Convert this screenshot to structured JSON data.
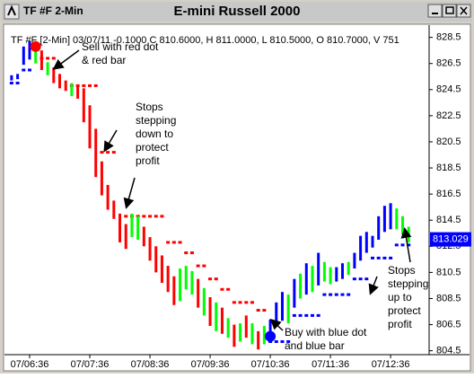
{
  "window": {
    "app_title": "TF #F 2-Min",
    "title": "E-mini Russell 2000"
  },
  "chart_data": {
    "type": "ohlc",
    "info": "TF #F [2-Min] 03/07/11 -0.1000 C 810.6000, H 811.0000, L 810.5000, O 810.7000, V 751",
    "x": [
      1,
      2,
      3,
      4,
      5,
      6,
      7,
      8,
      9,
      10,
      11,
      12,
      13,
      14,
      15,
      16,
      17,
      18,
      19,
      20,
      21,
      22,
      23,
      24,
      25,
      26,
      27,
      28,
      29,
      30,
      31,
      32,
      33,
      34,
      35,
      36,
      37,
      38,
      39,
      40,
      41,
      42,
      43,
      44,
      45,
      46,
      47,
      48,
      49,
      50,
      51,
      52,
      53,
      54,
      55,
      56,
      57,
      58,
      59,
      60,
      61,
      62,
      63,
      64,
      65,
      66,
      67
    ],
    "low": [
      825.2,
      825.3,
      826.4,
      826.8,
      826.5,
      826.0,
      825.6,
      825.0,
      824.6,
      824.4,
      824.0,
      823.8,
      822.0,
      820.0,
      817.8,
      816.4,
      815.3,
      814.6,
      812.8,
      812.3,
      813.2,
      813.0,
      812.5,
      811.4,
      810.5,
      809.7,
      809.0,
      808.0,
      808.3,
      809.2,
      808.8,
      807.8,
      807.2,
      806.4,
      806.0,
      805.8,
      805.5,
      804.8,
      805.2,
      805.5,
      805.0,
      804.6,
      805.0,
      805.4,
      806.4,
      806.8,
      806.6,
      807.8,
      808.5,
      808.8,
      809.0,
      809.5,
      809.8,
      809.6,
      809.8,
      810.0,
      810.3,
      810.8,
      811.4,
      812.0,
      812.4,
      813.0,
      813.6,
      813.8,
      813.8,
      813.4,
      812.8
    ],
    "high": [
      825.6,
      825.7,
      827.8,
      828.2,
      827.6,
      827.5,
      826.6,
      826.2,
      825.7,
      825.2,
      825.0,
      824.8,
      824.6,
      823.3,
      821.5,
      819.0,
      817.2,
      816.0,
      815.0,
      814.2,
      815.0,
      814.8,
      814.0,
      813.2,
      812.5,
      811.8,
      811.0,
      810.2,
      810.8,
      811.0,
      810.6,
      810.0,
      809.3,
      808.6,
      808.2,
      807.8,
      807.0,
      806.5,
      806.6,
      807.2,
      806.6,
      806.0,
      806.4,
      806.9,
      808.2,
      809.0,
      808.8,
      810.0,
      810.4,
      811.2,
      811.0,
      812.0,
      811.3,
      810.9,
      810.9,
      811.2,
      811.3,
      812.0,
      813.3,
      813.6,
      813.3,
      814.8,
      815.6,
      815.8,
      815.4,
      814.8,
      814.0
    ],
    "colors": [
      "#0000ff",
      "#0000ff",
      "#0000ff",
      "#0000ff",
      "#00ff00",
      "#ff0000",
      "#00ff00",
      "#ff0000",
      "#ff0000",
      "#ff0000",
      "#00ff00",
      "#ff0000",
      "#ff0000",
      "#ff0000",
      "#ff0000",
      "#ff0000",
      "#ff0000",
      "#ff0000",
      "#ff0000",
      "#ff0000",
      "#00ff00",
      "#00ff00",
      "#ff0000",
      "#ff0000",
      "#ff0000",
      "#ff0000",
      "#ff0000",
      "#ff0000",
      "#00ff00",
      "#00ff00",
      "#00ff00",
      "#ff0000",
      "#00ff00",
      "#ff0000",
      "#00ff00",
      "#ff0000",
      "#00ff00",
      "#ff0000",
      "#00ff00",
      "#ff0000",
      "#00ff00",
      "#ff0000",
      "#00ff00",
      "#0000ff",
      "#0000ff",
      "#0000ff",
      "#00ff00",
      "#0000ff",
      "#00ff00",
      "#0000ff",
      "#00ff00",
      "#0000ff",
      "#00ff00",
      "#00ff00",
      "#0000ff",
      "#0000ff",
      "#00ff00",
      "#0000ff",
      "#0000ff",
      "#0000ff",
      "#0000ff",
      "#0000ff",
      "#0000ff",
      "#0000ff",
      "#00ff00",
      "#00ff00",
      "#00ff00"
    ],
    "stops": [
      {
        "color": "#ff0000",
        "values": [
          null,
          null,
          null,
          null,
          null,
          826.9,
          826.9,
          826.9,
          null,
          null,
          824.8,
          824.8,
          824.8,
          824.8,
          824.8,
          819.7,
          819.7,
          819.7,
          null,
          814.8,
          814.8,
          814.8,
          814.8,
          814.8,
          814.8,
          814.8,
          812.8,
          812.8,
          812.8,
          812.0,
          812.0,
          811.0,
          811.0,
          810.0,
          810.0,
          809.2,
          809.2,
          808.2,
          808.2,
          808.2,
          808.2,
          807.6,
          807.6,
          null,
          null,
          null,
          null,
          null,
          null,
          null,
          null,
          null,
          null,
          null,
          null,
          null,
          null,
          null,
          null,
          null,
          null,
          null,
          null,
          null,
          null,
          null,
          null
        ]
      },
      {
        "color": "#0000ff",
        "values": [
          825.0,
          825.0,
          826.0,
          826.0,
          null,
          null,
          null,
          null,
          null,
          null,
          null,
          null,
          null,
          null,
          null,
          null,
          null,
          null,
          null,
          null,
          null,
          null,
          null,
          null,
          null,
          null,
          null,
          null,
          null,
          null,
          null,
          null,
          null,
          null,
          null,
          null,
          null,
          null,
          null,
          null,
          null,
          null,
          null,
          805.2,
          805.2,
          805.2,
          805.2,
          807.2,
          807.2,
          807.2,
          807.2,
          807.2,
          808.8,
          808.8,
          808.8,
          808.8,
          808.8,
          810.0,
          810.0,
          810.0,
          811.6,
          811.6,
          811.6,
          811.6,
          812.6,
          812.6,
          812.6
        ]
      }
    ],
    "signals": [
      {
        "x": 5,
        "y": 827.8,
        "color": "#ff0000"
      },
      {
        "x": 44,
        "y": 805.6,
        "color": "#0000ff"
      }
    ],
    "last_price": 813.029,
    "last_price_color": "#0000ff",
    "xlim": [
      0.27,
      70.4
    ],
    "ylim": [
      804.2,
      829.3
    ],
    "yticks": [
      804.5,
      806.5,
      808.5,
      810.5,
      812.5,
      814.5,
      816.5,
      818.5,
      820.5,
      822.5,
      824.5,
      826.5,
      828.5
    ],
    "xticks": [
      {
        "value": 4,
        "label": "07/06:36"
      },
      {
        "value": 14,
        "label": "07/07:36"
      },
      {
        "value": 24,
        "label": "07/08:36"
      },
      {
        "value": 34,
        "label": "07/09:36"
      },
      {
        "value": 44,
        "label": "07/10:36"
      },
      {
        "value": 54,
        "label": "07/11:36"
      },
      {
        "value": 64,
        "label": "07/12:36"
      }
    ],
    "annotations": [
      [
        "Sell with red dot",
        "& red bar"
      ],
      [
        "Stops",
        "stepping",
        "down to",
        "protect",
        "profit"
      ],
      [
        "Buy with blue dot",
        "and blue bar"
      ],
      [
        "Stops",
        "stepping",
        "up to",
        "protect",
        "profit"
      ]
    ]
  }
}
